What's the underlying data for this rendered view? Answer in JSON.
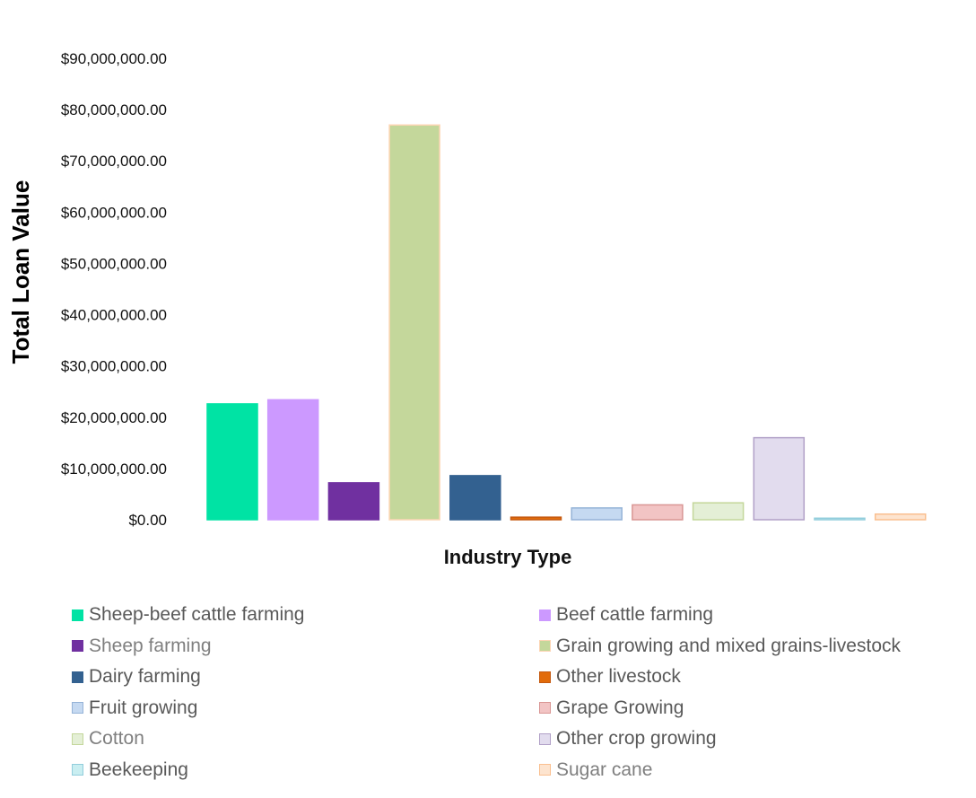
{
  "chart_data": {
    "type": "bar",
    "title": "",
    "xlabel": "Industry Type",
    "ylabel": "Total Loan Value",
    "ylim": [
      0,
      90000000
    ],
    "yticks": [
      "$0.00",
      "$10,000,000.00",
      "$20,000,000.00",
      "$30,000,000.00",
      "$40,000,000.00",
      "$50,000,000.00",
      "$60,000,000.00",
      "$70,000,000.00",
      "$80,000,000.00",
      "$90,000,000.00"
    ],
    "ytick_values": [
      0,
      10000000,
      20000000,
      30000000,
      40000000,
      50000000,
      60000000,
      70000000,
      80000000,
      90000000
    ],
    "grid": false,
    "legend_position": "bottom",
    "categories": [
      "Sheep-beef cattle farming",
      "Beef cattle farming",
      "Sheep farming",
      "Grain growing and mixed grains-livestock",
      "Dairy farming",
      "Other livestock",
      "Fruit growing",
      "Grape Growing",
      "Cotton",
      "Other crop growing",
      "Beekeeping",
      "Sugar cane"
    ],
    "values": [
      22600000,
      23400000,
      7200000,
      77000000,
      8600000,
      500000,
      2300000,
      2900000,
      3300000,
      16000000,
      300000,
      1100000
    ],
    "fill_colors": [
      "#00e3a4",
      "#cc99ff",
      "#7030a0",
      "#c4d79b",
      "#336190",
      "#e26b0a",
      "#c5d9f1",
      "#f2c4c4",
      "#e4efd6",
      "#e2dcee",
      "#c9eef1",
      "#fde4cf"
    ],
    "stroke_colors": [
      "#00e3a4",
      "#cc99ff",
      "#7030a0",
      "#fcd5b4",
      "#336190",
      "#c55a11",
      "#95b3d7",
      "#d99694",
      "#c4d79b",
      "#b1a0c7",
      "#92cddc",
      "#fabf8f"
    ],
    "legend_text_colors": [
      "#595959",
      "#595959",
      "#7f7f7f",
      "#595959",
      "#595959",
      "#595959",
      "#595959",
      "#595959",
      "#7f7f7f",
      "#595959",
      "#595959",
      "#7f7f7f"
    ]
  }
}
